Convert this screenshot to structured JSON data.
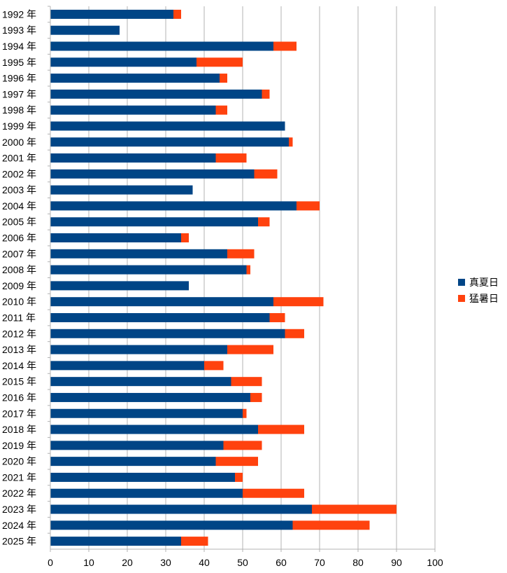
{
  "chart_data": {
    "type": "bar",
    "orientation": "horizontal",
    "stacked": true,
    "title": "",
    "xlabel": "",
    "ylabel": "",
    "xlim": [
      0,
      100
    ],
    "x_ticks": [
      0,
      10,
      20,
      30,
      40,
      50,
      60,
      70,
      80,
      90,
      100
    ],
    "grid": true,
    "legend_position": "right",
    "categories": [
      "1992 年",
      "1993 年",
      "1994 年",
      "1995 年",
      "1996 年",
      "1997 年",
      "1998 年",
      "1999 年",
      "2000 年",
      "2001 年",
      "2002 年",
      "2003 年",
      "2004 年",
      "2005 年",
      "2006 年",
      "2007 年",
      "2008 年",
      "2009 年",
      "2010 年",
      "2011 年",
      "2012 年",
      "2013 年",
      "2014 年",
      "2015 年",
      "2016 年",
      "2017 年",
      "2018 年",
      "2019 年",
      "2020 年",
      "2021 年",
      "2022 年",
      "2023 年",
      "2024 年",
      "2025 年"
    ],
    "series": [
      {
        "name": "真夏日",
        "color": "#004586",
        "values": [
          32,
          18,
          58,
          38,
          44,
          55,
          43,
          61,
          62,
          43,
          53,
          37,
          64,
          54,
          34,
          46,
          51,
          36,
          58,
          57,
          61,
          46,
          40,
          47,
          52,
          50,
          54,
          45,
          43,
          48,
          50,
          68,
          63,
          34
        ]
      },
      {
        "name": "猛暑日",
        "color": "#ff420e",
        "values": [
          2,
          0,
          6,
          12,
          2,
          2,
          3,
          0,
          1,
          8,
          6,
          0,
          6,
          3,
          2,
          7,
          1,
          0,
          13,
          4,
          5,
          12,
          5,
          8,
          3,
          1,
          12,
          10,
          11,
          2,
          16,
          22,
          20,
          7
        ]
      }
    ]
  }
}
